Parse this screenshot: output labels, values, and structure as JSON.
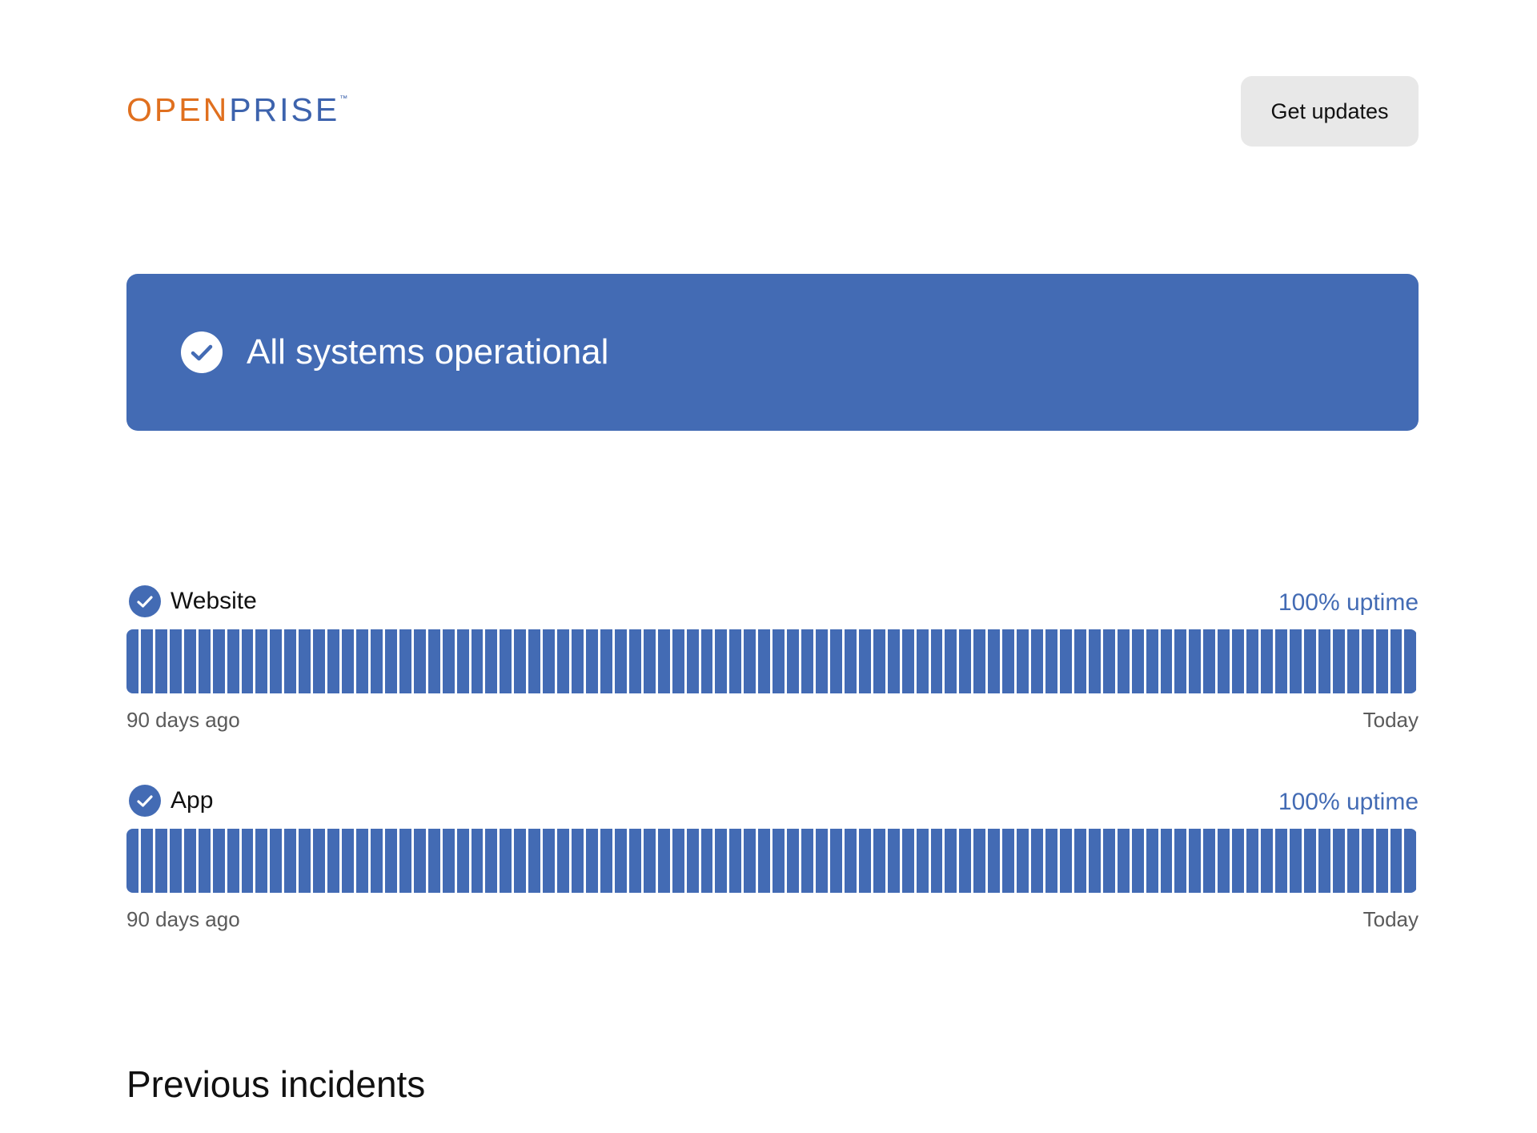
{
  "header": {
    "logo_open": "OPEN",
    "logo_prise": "PRISE",
    "logo_tm": "™",
    "get_updates_label": "Get updates"
  },
  "banner": {
    "status_text": "All systems operational",
    "icon": "check-circle-icon"
  },
  "components": [
    {
      "name": "Website",
      "status_icon": "check-circle-icon",
      "uptime_label": "100% uptime",
      "range_start": "90 days ago",
      "range_end": "Today",
      "days": 90,
      "operational_days": 90
    },
    {
      "name": "App",
      "status_icon": "check-circle-icon",
      "uptime_label": "100% uptime",
      "range_start": "90 days ago",
      "range_end": "Today",
      "days": 90,
      "operational_days": 90
    }
  ],
  "incidents": {
    "title": "Previous incidents"
  },
  "colors": {
    "brand_blue": "#436bb4",
    "logo_orange": "#e0701f",
    "button_gray": "#e8e8e8",
    "muted_text": "#5a5a5a"
  }
}
